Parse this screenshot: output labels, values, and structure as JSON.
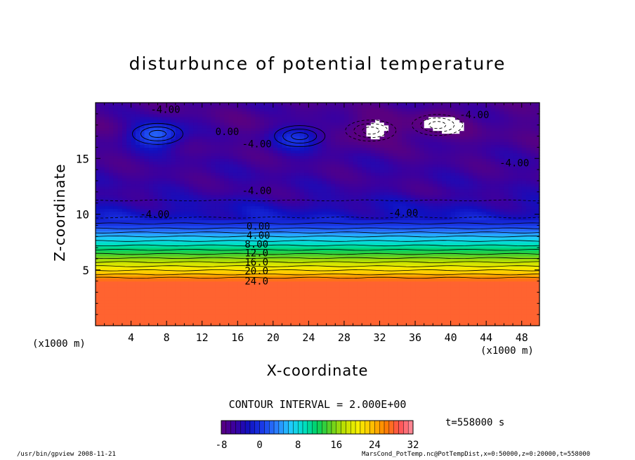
{
  "title": "disturbunce of potential temperature",
  "interval_text": "CONTOUR INTERVAL = 2.000E+00",
  "time_text": "t=558000 s",
  "footer_left": "/usr/bin/gpview   2008-11-21",
  "footer_right": "MarsCond_PotTemp.nc@PotTempDist,x=0:50000,z=0:20000,t=558000",
  "chart_data": {
    "type": "heatmap",
    "title": "disturbunce of potential temperature",
    "xlabel": "X-coordinate",
    "ylabel": "Z-coordinate",
    "x_unit": "(x1000 m)",
    "xlim": [
      0,
      50
    ],
    "ylim": [
      0,
      20
    ],
    "x_ticks": [
      4,
      8,
      12,
      16,
      20,
      24,
      28,
      32,
      36,
      40,
      44,
      48
    ],
    "y_ticks": [
      5,
      10,
      15
    ],
    "contour_interval": 2.0,
    "colorbar": {
      "ticks": [
        -8,
        0,
        8,
        16,
        24,
        32
      ],
      "min": -8,
      "max": 32,
      "colors": [
        "#5a0080",
        "#3a00a0",
        "#1010c0",
        "#1a3ae8",
        "#2a7cff",
        "#22c8ff",
        "#00e0c8",
        "#00d060",
        "#60d020",
        "#c0e000",
        "#f8f000",
        "#ffc000",
        "#ff8000",
        "#ff5050",
        "#ff90a0"
      ]
    },
    "profile": [
      {
        "z": 0,
        "value": 28.0
      },
      {
        "z": 4,
        "value": 28.0
      },
      {
        "z": 4.6,
        "value": 24.0
      },
      {
        "z": 5.7,
        "value": 18.0
      },
      {
        "z": 6.8,
        "value": 12.0
      },
      {
        "z": 8.0,
        "value": 6.0
      },
      {
        "z": 8.9,
        "value": 1.0
      },
      {
        "z": 9.7,
        "value": -2.0
      },
      {
        "z": 12.0,
        "value": -5.0
      },
      {
        "z": 15.0,
        "value": -5.5
      },
      {
        "z": 18.0,
        "value": -6.5
      },
      {
        "z": 20.0,
        "value": -6.0
      }
    ],
    "contour_labels": [
      {
        "text": "-4.00",
        "x": 6.2,
        "z": 19.1
      },
      {
        "text": "0.00",
        "x": 13.5,
        "z": 17.1
      },
      {
        "text": "-4.00",
        "x": 16.5,
        "z": 16.0
      },
      {
        "text": "-4.00",
        "x": 41.0,
        "z": 18.6
      },
      {
        "text": "-4.00",
        "x": 45.5,
        "z": 14.3
      },
      {
        "text": "-4.00",
        "x": 16.5,
        "z": 11.8
      },
      {
        "text": "-4.00",
        "x": 5.0,
        "z": 9.7
      },
      {
        "text": "-4.00",
        "x": 33.0,
        "z": 9.8
      },
      {
        "text": "0.00",
        "x": 17.0,
        "z": 8.6
      },
      {
        "text": "4.00",
        "x": 17.0,
        "z": 7.8
      },
      {
        "text": "8.00",
        "x": 16.8,
        "z": 7.0
      },
      {
        "text": "12.0",
        "x": 16.8,
        "z": 6.2
      },
      {
        "text": "16.0",
        "x": 16.8,
        "z": 5.4
      },
      {
        "text": "20.0",
        "x": 16.8,
        "z": 4.6
      },
      {
        "text": "24.0",
        "x": 16.8,
        "z": 3.7
      }
    ],
    "anomalies": [
      {
        "x": 7.0,
        "z": 17.2,
        "value": 3.0
      },
      {
        "x": 23.0,
        "z": 17.0,
        "value": 0.0
      },
      {
        "x": 31.0,
        "z": 17.5,
        "value": -10.0
      },
      {
        "x": 38.5,
        "z": 18.0,
        "value": -10.0
      }
    ]
  }
}
